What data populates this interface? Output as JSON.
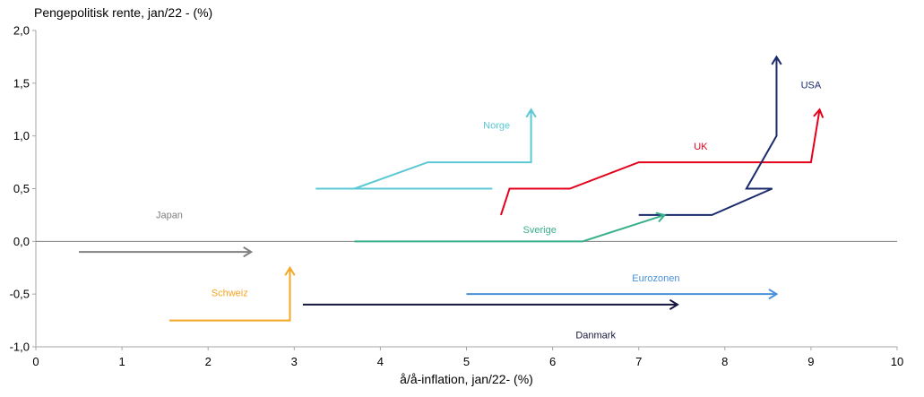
{
  "chart_data": {
    "type": "line",
    "title": "Pengepolitisk rente, jan/22 - (%)",
    "xlabel": "å/å-inflation, jan/22- (%)",
    "ylabel": "",
    "xlim": [
      0,
      10
    ],
    "ylim": [
      -1.0,
      2.0
    ],
    "x_ticks": [
      0,
      1,
      2,
      3,
      4,
      5,
      6,
      7,
      8,
      9,
      10
    ],
    "x_tick_labels": [
      "0",
      "1",
      "2",
      "3",
      "4",
      "5",
      "6",
      "7",
      "8",
      "9",
      "10"
    ],
    "y_ticks": [
      2.0,
      1.5,
      1.0,
      0.5,
      0.0,
      -0.5,
      -1.0
    ],
    "y_tick_labels": [
      "2,0",
      "1,5",
      "1,0",
      "0,5",
      "0,0",
      "-0,5",
      "-1,0"
    ],
    "grid": false,
    "legend": "none",
    "series": [
      {
        "name": "Norge",
        "color": "#5bc8d3",
        "points": [
          [
            5.3,
            0.5
          ],
          [
            3.25,
            0.5
          ],
          [
            3.7,
            0.5
          ],
          [
            4.55,
            0.75
          ],
          [
            5.75,
            0.75
          ],
          [
            5.75,
            1.25
          ]
        ]
      },
      {
        "name": "UK",
        "color": "#e4001b",
        "points": [
          [
            5.4,
            0.25
          ],
          [
            5.5,
            0.5
          ],
          [
            6.2,
            0.5
          ],
          [
            7.0,
            0.75
          ],
          [
            9.0,
            0.75
          ],
          [
            9.1,
            1.25
          ]
        ]
      },
      {
        "name": "USA",
        "color": "#1a2a6b",
        "points": [
          [
            7.0,
            0.25
          ],
          [
            7.85,
            0.25
          ],
          [
            8.55,
            0.5
          ],
          [
            8.25,
            0.5
          ],
          [
            8.6,
            1.0
          ],
          [
            8.6,
            1.75
          ]
        ]
      },
      {
        "name": "Sverige",
        "color": "#3aaf8c",
        "points": [
          [
            3.7,
            0.0
          ],
          [
            6.35,
            0.0
          ],
          [
            7.3,
            0.25
          ]
        ]
      },
      {
        "name": "Japan",
        "color": "#808080",
        "points": [
          [
            0.5,
            -0.1
          ],
          [
            2.5,
            -0.1
          ]
        ]
      },
      {
        "name": "Schweiz",
        "color": "#f5a623",
        "points": [
          [
            1.55,
            -0.75
          ],
          [
            2.95,
            -0.75
          ],
          [
            2.95,
            -0.25
          ]
        ]
      },
      {
        "name": "Eurozonen",
        "color": "#4a90d9",
        "points": [
          [
            5.0,
            -0.5
          ],
          [
            8.6,
            -0.5
          ]
        ]
      },
      {
        "name": "Danmark",
        "color": "#14143c",
        "points": [
          [
            3.1,
            -0.6
          ],
          [
            7.45,
            -0.6
          ]
        ]
      }
    ],
    "annotations": [
      {
        "series": "Norge",
        "text": "Norge",
        "x": 5.35,
        "y": 1.07,
        "color": "#5bc8d3"
      },
      {
        "series": "UK",
        "text": "UK",
        "x": 7.72,
        "y": 0.87,
        "color": "#e4001b"
      },
      {
        "series": "USA",
        "text": "USA",
        "x": 9.0,
        "y": 1.45,
        "color": "#1a2a6b"
      },
      {
        "series": "Sverige",
        "text": "Sverige",
        "x": 5.85,
        "y": 0.08,
        "color": "#3aaf8c"
      },
      {
        "series": "Japan",
        "text": "Japan",
        "x": 1.55,
        "y": 0.22,
        "color": "#808080"
      },
      {
        "series": "Schweiz",
        "text": "Schweiz",
        "x": 2.25,
        "y": -0.52,
        "color": "#f5a623"
      },
      {
        "series": "Eurozonen",
        "text": "Eurozonen",
        "x": 7.2,
        "y": -0.38,
        "color": "#4a90d9"
      },
      {
        "series": "Danmark",
        "text": "Danmark",
        "x": 6.5,
        "y": -0.92,
        "color": "#14143c"
      }
    ]
  }
}
